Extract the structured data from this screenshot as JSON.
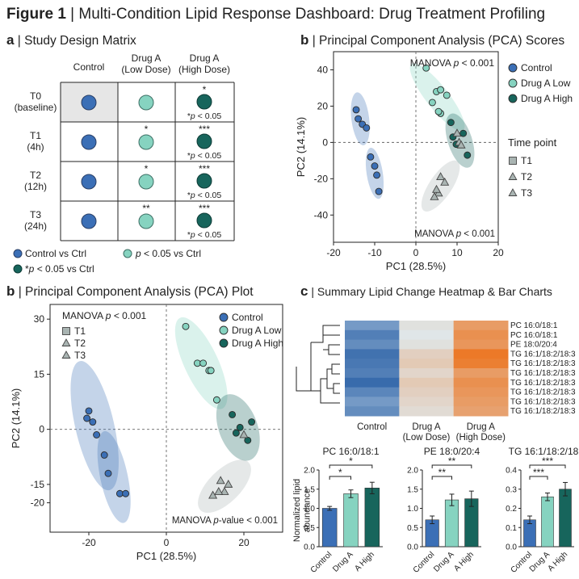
{
  "figure": {
    "label": "Figure 1",
    "title": "Multi-Condition Lipid Response Dashboard: Drug Treatment Profiling"
  },
  "colors": {
    "control": "#3b6fb6",
    "drug_low": "#86d3c0",
    "drug_high": "#17655c",
    "time": "#a9b4b2",
    "ctrl_cell": "#e6e6e6"
  },
  "panel_a": {
    "label": "a",
    "title": "Study Design Matrix",
    "columns": [
      "Control",
      "Drug A\n(Low Dose)",
      "Drug A\n(High Dose)"
    ],
    "rows": [
      {
        "label": "T0\n(baseline)",
        "low_sig": "",
        "high_sig": "*"
      },
      {
        "label": "T1\n(4h)",
        "low_sig": "*",
        "high_sig": "***"
      },
      {
        "label": "T2\n(12h)",
        "low_sig": "*",
        "high_sig": "***"
      },
      {
        "label": "T3\n(24h)",
        "low_sig": "**",
        "high_sig": "***"
      }
    ],
    "cell_note": "*p < 0.05",
    "legend": [
      "Control vs Ctrl",
      "p < 0.05 vs Ctrl",
      "*p < 0.05 vs Ctrl"
    ]
  },
  "panel_b_top": {
    "label": "b",
    "title": "Principal Component Analysis (PCA) Scores",
    "annotation_top": "MANOVA p < 0.001",
    "annotation_bottom": "MANOVA p < 0.001",
    "legend_groups": [
      "Control",
      "Drug A Low",
      "Drug A High"
    ],
    "legend_time_title": "Time point",
    "legend_time": [
      "T1",
      "T2",
      "T3"
    ]
  },
  "panel_b_bottom": {
    "label": "b",
    "title": "Principal Component Analysis (PCA) Plot",
    "annotation_top": "MANOVA p < 0.001",
    "annotation_bottom": "MANOVA p-value < 0.001",
    "legend_groups": [
      "Control",
      "Drug A Low",
      "Drug A High"
    ],
    "legend_time": [
      "T1",
      "T2",
      "T3"
    ]
  },
  "panel_c": {
    "label": "c",
    "title": "Summary Lipid Change Heatmap & Bar Charts",
    "heatmap_columns": [
      "Control",
      "Drug A\n(Low Dose)",
      "Drug A\n(High Dose)"
    ],
    "heatmap_rows": [
      "PC 16:0/18:1",
      "PC 16:0/18:1",
      "PE 18:0/20:4",
      "TG 16:1/18:2/18:3",
      "TG 16:1/18:2/18:3",
      "TG 16:1/18:2/18:3",
      "TG 16:1/18:2/18:3",
      "TG 16:1/18:2/18:3",
      "TG 16:1/18:2/18:3",
      "TG 16:1/18:2/18:3"
    ],
    "bar_ylabel": "Normalized lipid\nabundance",
    "bar_categories": [
      "Control",
      "Drug A",
      "A High"
    ]
  },
  "chart_data": [
    {
      "type": "scatter",
      "id": "pca-scores",
      "xlabel": "PC1 (28.5%)",
      "ylabel": "PC2 (14.1%)",
      "xlim": [
        -20,
        20
      ],
      "ylim": [
        -55,
        50
      ],
      "xticks": [
        -20,
        -10,
        0,
        10,
        20
      ],
      "yticks": [
        -40,
        -20,
        0,
        20,
        40
      ],
      "series": [
        {
          "name": "Control",
          "marker": "circle",
          "points": [
            [
              -14.5,
              18
            ],
            [
              -14,
              13
            ],
            [
              -13,
              10
            ],
            [
              -12,
              8
            ],
            [
              -11,
              -8
            ],
            [
              -10,
              -13
            ],
            [
              -9.5,
              -18
            ],
            [
              -9,
              -27
            ]
          ]
        },
        {
          "name": "Drug A Low",
          "marker": "circle",
          "points": [
            [
              2.5,
              41
            ],
            [
              5,
              28
            ],
            [
              6,
              29
            ],
            [
              7.5,
              26
            ],
            [
              4,
              22
            ],
            [
              6,
              16
            ],
            [
              5.5,
              17
            ]
          ]
        },
        {
          "name": "Drug A High",
          "marker": "circle",
          "points": [
            [
              8.5,
              11
            ],
            [
              9,
              3
            ],
            [
              9.8,
              -1
            ],
            [
              11.5,
              5
            ],
            [
              12.5,
              -7
            ]
          ]
        },
        {
          "name": "T1",
          "marker": "triangle",
          "points": [
            [
              10,
              5
            ],
            [
              10.5,
              0
            ],
            [
              11,
              -1.5
            ]
          ]
        },
        {
          "name": "T2",
          "marker": "triangle",
          "points": [
            [
              6,
              -19
            ],
            [
              7,
              -22
            ],
            [
              5.5,
              -28
            ]
          ]
        },
        {
          "name": "T3",
          "marker": "triangle",
          "points": [
            [
              4.5,
              -30
            ],
            [
              5,
              -26
            ]
          ]
        }
      ]
    },
    {
      "type": "scatter",
      "id": "pca-plot",
      "xlabel": "PC1 (28.5%)",
      "ylabel": "PC2 (14.1%)",
      "xlim": [
        -30,
        30
      ],
      "ylim": [
        -28,
        34
      ],
      "xticks": [
        -20,
        0,
        20
      ],
      "yticks": [
        30,
        15,
        0,
        -15,
        -20
      ],
      "series": [
        {
          "name": "Control",
          "marker": "circle",
          "points": [
            [
              -20,
              5
            ],
            [
              -20.5,
              3
            ],
            [
              -19,
              2
            ],
            [
              -18,
              -1.5
            ],
            [
              -16,
              -7
            ],
            [
              -15,
              -12
            ],
            [
              -12,
              -17.5
            ],
            [
              -10.5,
              -17.5
            ]
          ]
        },
        {
          "name": "Drug A Low",
          "marker": "circle",
          "points": [
            [
              5,
              28
            ],
            [
              8,
              18
            ],
            [
              9.5,
              18
            ],
            [
              11,
              16
            ],
            [
              11.5,
              16
            ],
            [
              13,
              8
            ]
          ]
        },
        {
          "name": "Drug A High",
          "marker": "circle",
          "points": [
            [
              17,
              4
            ],
            [
              18,
              -1
            ],
            [
              19,
              0.5
            ],
            [
              21,
              -3
            ],
            [
              22,
              2
            ]
          ]
        },
        {
          "name": "T1",
          "marker": "triangle",
          "points": [
            [
              20,
              -1.5
            ]
          ]
        },
        {
          "name": "T2",
          "marker": "triangle",
          "points": [
            [
              14,
              -14
            ],
            [
              16,
              -15
            ],
            [
              15,
              -17
            ]
          ]
        },
        {
          "name": "T3",
          "marker": "triangle",
          "points": [
            [
              12,
              -18
            ],
            [
              13.5,
              -17
            ]
          ]
        }
      ]
    },
    {
      "type": "heatmap",
      "id": "lipid-heatmap",
      "columns": [
        "Control",
        "Drug A (Low Dose)",
        "Drug A (High Dose)"
      ],
      "rows": [
        "PC 16:0/18:1",
        "PC 16:0/18:1",
        "PE 18:0/20:4",
        "TG 16:1/18:2/18:3",
        "TG 16:1/18:2/18:3",
        "TG 16:1/18:2/18:3",
        "TG 16:1/18:2/18:3",
        "TG 16:1/18:2/18:3",
        "TG 16:1/18:2/18:3",
        "TG 16:1/18:2/18:3"
      ],
      "values": [
        [
          -0.6,
          0.1,
          0.7
        ],
        [
          -0.8,
          0.05,
          0.8
        ],
        [
          -0.7,
          0.1,
          0.75
        ],
        [
          -0.9,
          0.25,
          1.0
        ],
        [
          -0.85,
          0.3,
          0.95
        ],
        [
          -0.8,
          0.2,
          0.7
        ],
        [
          -0.95,
          0.3,
          0.8
        ],
        [
          -0.75,
          0.25,
          0.75
        ],
        [
          -0.6,
          0.2,
          0.7
        ],
        [
          -0.7,
          0.15,
          0.65
        ]
      ]
    },
    {
      "type": "bar",
      "id": "bar-pc",
      "title": "PC 16:0/18:1",
      "categories": [
        "Control",
        "Drug A",
        "A High"
      ],
      "values": [
        1.0,
        1.38,
        1.53
      ],
      "errors": [
        0.05,
        0.1,
        0.15
      ],
      "ylim": [
        0,
        2.0
      ],
      "yticks": [
        0,
        0.5,
        1.0,
        1.5,
        2.0
      ],
      "significance": [
        {
          "from": 0,
          "to": 1,
          "label": "*"
        },
        {
          "from": 0,
          "to": 2,
          "label": "*"
        }
      ]
    },
    {
      "type": "bar",
      "id": "bar-pe",
      "title": "PE 18:0/20:4",
      "categories": [
        "Control",
        "Drug A",
        "A High"
      ],
      "values": [
        0.7,
        1.22,
        1.25
      ],
      "errors": [
        0.1,
        0.15,
        0.2
      ],
      "ylim": [
        0,
        2.0
      ],
      "yticks": [
        0,
        0.5,
        1.0,
        1.5,
        2.0
      ],
      "significance": [
        {
          "from": 0,
          "to": 1,
          "label": "**"
        },
        {
          "from": 0,
          "to": 2,
          "label": "**"
        }
      ]
    },
    {
      "type": "bar",
      "id": "bar-tg",
      "title": "TG 16:1/18:2/18:3",
      "categories": [
        "Control",
        "Drug A",
        "A High"
      ],
      "values": [
        0.14,
        0.26,
        0.3
      ],
      "errors": [
        0.02,
        0.02,
        0.035
      ],
      "ylim": [
        0,
        0.4
      ],
      "yticks": [
        0,
        0.1,
        0.2,
        0.3,
        0.4
      ],
      "significance": [
        {
          "from": 0,
          "to": 1,
          "label": "***"
        },
        {
          "from": 0,
          "to": 2,
          "label": "***"
        }
      ]
    }
  ]
}
